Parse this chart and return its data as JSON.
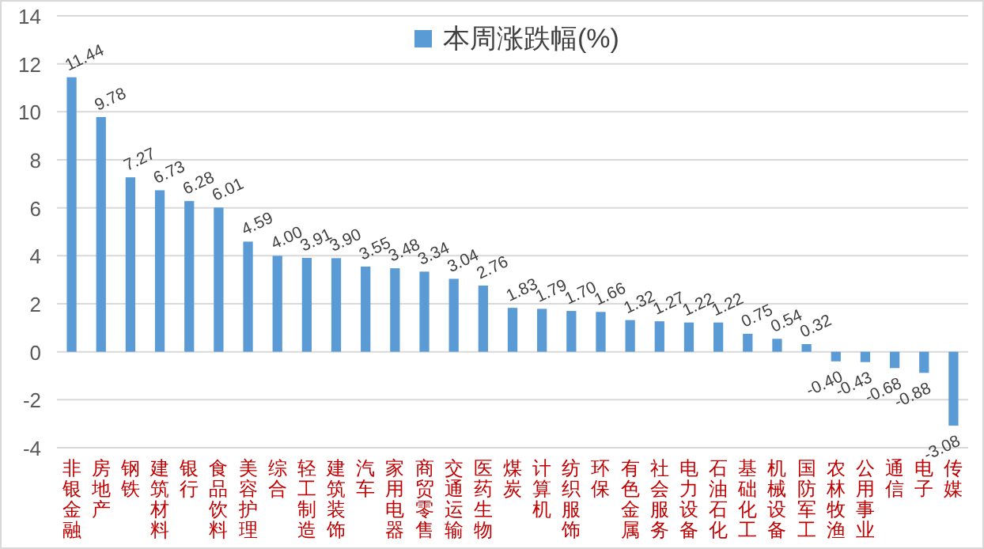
{
  "chart_data": {
    "type": "bar",
    "categories": [
      "非银金融",
      "房地产",
      "钢铁",
      "建筑材料",
      "银行",
      "食品饮料",
      "美容护理",
      "综合",
      "轻工制造",
      "建筑装饰",
      "汽车",
      "家用电器",
      "商贸零售",
      "交通运输",
      "医药生物",
      "煤炭",
      "计算机",
      "纺织服饰",
      "环保",
      "有色金属",
      "社会服务",
      "电力设备",
      "石油石化",
      "基础化工",
      "机械设备",
      "国防军工",
      "农林牧渔",
      "公用事业",
      "通信",
      "电子",
      "传媒"
    ],
    "series": [
      {
        "name": "本周涨跌幅(%)",
        "color": "#5b9bd5",
        "values": [
          11.44,
          9.78,
          7.27,
          6.73,
          6.28,
          6.01,
          4.59,
          4.0,
          3.91,
          3.9,
          3.55,
          3.48,
          3.34,
          3.04,
          2.76,
          1.83,
          1.79,
          1.7,
          1.66,
          1.32,
          1.27,
          1.22,
          1.22,
          0.75,
          0.54,
          0.32,
          -0.4,
          -0.43,
          -0.68,
          -0.88,
          -3.08
        ]
      }
    ],
    "ylim": [
      -4,
      14
    ],
    "yticks": [
      -4,
      -2,
      0,
      2,
      4,
      6,
      8,
      10,
      12,
      14
    ],
    "value_labels": [
      "11.44",
      "9.78",
      "7.27",
      "6.73",
      "6.28",
      "6.01",
      "4.59",
      "4.00",
      "3.91",
      "3.90",
      "3.55",
      "3.48",
      "3.34",
      "3.04",
      "2.76",
      "1.83",
      "1.79",
      "1.70",
      "1.66",
      "1.32",
      "1.27",
      "1.22",
      "1.22",
      "0.75",
      "0.54",
      "0.32",
      "-0.40",
      "-0.43",
      "-0.68",
      "-0.88",
      "-3.08"
    ],
    "grid": "y",
    "legend": "top"
  }
}
